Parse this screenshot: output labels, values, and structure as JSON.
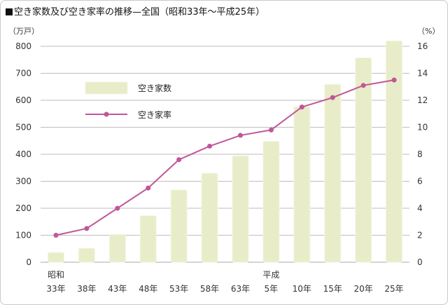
{
  "title": "空き家数及び空き家率の推移—全国（昭和33年～平成25年）",
  "chart_data": {
    "type": "bar",
    "categories": [
      "33年",
      "38年",
      "43年",
      "48年",
      "53年",
      "58年",
      "63年",
      "5年",
      "10年",
      "15年",
      "20年",
      "25年"
    ],
    "era_labels": [
      {
        "category_index": 0,
        "label": "昭和"
      },
      {
        "category_index": 7,
        "label": "平成"
      }
    ],
    "series": [
      {
        "name": "空き家数",
        "type": "bar",
        "axis": "left",
        "color": "#e8ecc8",
        "values": [
          36,
          52,
          103,
          172,
          268,
          330,
          394,
          448,
          576,
          659,
          757,
          820
        ]
      },
      {
        "name": "空き家率",
        "type": "line",
        "axis": "right",
        "color": "#c0569a",
        "values": [
          2.0,
          2.5,
          4.0,
          5.5,
          7.6,
          8.6,
          9.4,
          9.8,
          11.5,
          12.2,
          13.1,
          13.5
        ]
      }
    ],
    "y_left": {
      "unit": "（万戸）",
      "range": [
        0,
        800
      ],
      "ticks": [
        0,
        100,
        200,
        300,
        400,
        500,
        600,
        700,
        800
      ]
    },
    "y_right": {
      "unit": "（%）",
      "range": [
        0,
        16
      ],
      "ticks": [
        0,
        2,
        4,
        6,
        8,
        10,
        12,
        14,
        16
      ]
    },
    "grid": true,
    "legend_position": "upper-left inside plot"
  }
}
